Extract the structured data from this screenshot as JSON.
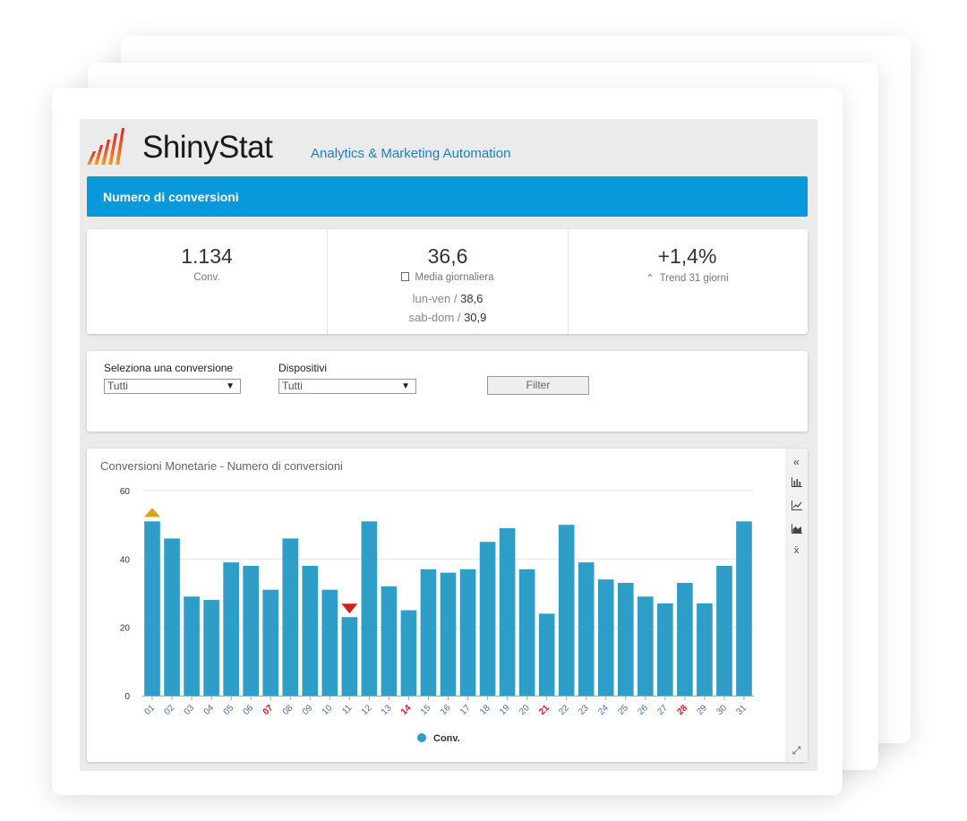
{
  "app": {
    "brand": "ShinyStat",
    "tagline": "Analytics & Marketing Automation"
  },
  "header": {
    "title": "Numero di conversioni"
  },
  "stats": {
    "total": {
      "value": "1.134",
      "label": "Conv."
    },
    "average": {
      "value": "36,6",
      "label": "Media giornaliera",
      "weekday_label": "lun-ven /",
      "weekday_value": "38,6",
      "weekend_label": "sab-dom /",
      "weekend_value": "30,9"
    },
    "trend": {
      "value": "+1,4%",
      "label": "Trend 31 giorni"
    }
  },
  "filters": {
    "conversion": {
      "label": "Seleziona una conversione",
      "value": "Tutti"
    },
    "devices": {
      "label": "Dispositivi",
      "value": "Tutti"
    },
    "button": "Filter"
  },
  "toolbar": {
    "icons": [
      "collapse-icon",
      "bar-chart-icon",
      "line-chart-icon",
      "area-chart-icon",
      "average-icon",
      "expand-icon"
    ]
  },
  "colors": {
    "bar": "#2e9ec8",
    "header": "#0899dc",
    "max_marker": "#d7a31a",
    "min_marker": "#d12222",
    "weekend": "#e0191e",
    "tick": "#4a6fa5"
  },
  "chart_data": {
    "type": "bar",
    "title": "Conversioni Monetarie - Numero di conversioni",
    "categories": [
      "01",
      "02",
      "03",
      "04",
      "05",
      "06",
      "07",
      "08",
      "09",
      "10",
      "11",
      "12",
      "13",
      "14",
      "15",
      "16",
      "17",
      "18",
      "19",
      "20",
      "21",
      "22",
      "23",
      "24",
      "25",
      "26",
      "27",
      "28",
      "29",
      "30",
      "31"
    ],
    "series": [
      {
        "name": "Conv.",
        "values": [
          51,
          46,
          29,
          28,
          39,
          38,
          31,
          46,
          38,
          31,
          23,
          51,
          32,
          25,
          37,
          36,
          37,
          45,
          49,
          37,
          24,
          50,
          39,
          34,
          33,
          29,
          27,
          33,
          27,
          38,
          51
        ]
      }
    ],
    "highlighted_categories": [
      "07",
      "14",
      "21",
      "28"
    ],
    "max_marker_index": 0,
    "min_marker_index": 10,
    "ylim": [
      0,
      60
    ],
    "yticks": [
      0,
      20,
      40,
      60
    ],
    "legend": "bottom-center",
    "grid": true
  }
}
